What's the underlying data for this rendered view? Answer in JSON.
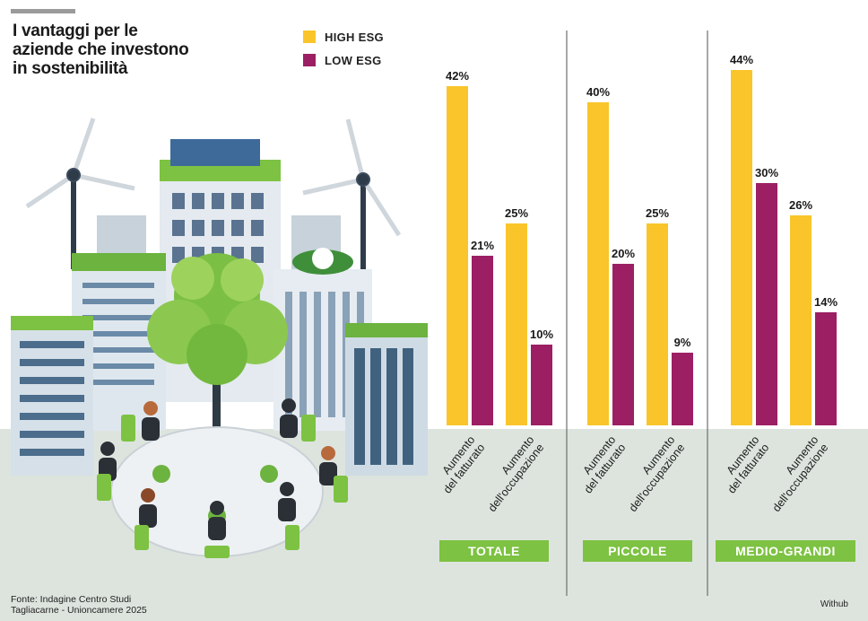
{
  "title": "I vantaggi per le aziende che investono in sostenibilità",
  "legend": {
    "high": {
      "label": "HIGH ESG",
      "color": "#f9c52b"
    },
    "low": {
      "label": "LOW ESG",
      "color": "#9c1f63"
    }
  },
  "source": {
    "line1": "Fonte: Indagine Centro Studi",
    "line2": "Tagliacarne - Unioncamere 2025"
  },
  "credit": "Withub",
  "chart_data": {
    "type": "bar",
    "title": "I vantaggi per le aziende che investono in sostenibilità",
    "unit": "%",
    "ylim": [
      0,
      44
    ],
    "legend_position": "top-left",
    "grid": false,
    "series_names": [
      "HIGH ESG",
      "LOW ESG"
    ],
    "groups": [
      {
        "name": "TOTALE",
        "categories": [
          {
            "label_lines": [
              "Aumento",
              "del fatturato"
            ],
            "high": 42,
            "low": 21
          },
          {
            "label_lines": [
              "Aumento",
              "dell'occupazione"
            ],
            "high": 25,
            "low": 10
          }
        ]
      },
      {
        "name": "PICCOLE",
        "categories": [
          {
            "label_lines": [
              "Aumento",
              "del fatturato"
            ],
            "high": 40,
            "low": 20
          },
          {
            "label_lines": [
              "Aumento",
              "dell'occupazione"
            ],
            "high": 25,
            "low": 9
          }
        ]
      },
      {
        "name": "MEDIO-GRANDI",
        "categories": [
          {
            "label_lines": [
              "Aumento",
              "del fatturato"
            ],
            "high": 44,
            "low": 30
          },
          {
            "label_lines": [
              "Aumento",
              "dell'occupazione"
            ],
            "high": 26,
            "low": 14
          }
        ]
      }
    ]
  }
}
